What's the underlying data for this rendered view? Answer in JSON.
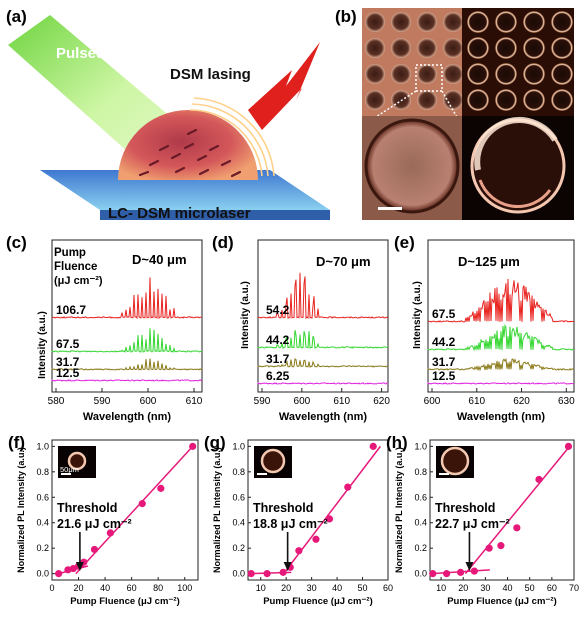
{
  "panel_a": {
    "letter": "(a)",
    "label_laser": "Pulsed laser",
    "label_lasing": "DSM lasing",
    "label_device": "LC- DSM microlaser",
    "colors": {
      "laser": "#7ddc3a",
      "glass": "#5a8fd6",
      "droplet": "#d05050",
      "bolt": "#e0201c"
    }
  },
  "panel_b": {
    "letter": "(b)"
  },
  "panel_c": {
    "letter": "(c)",
    "legend_title": "Pump",
    "legend_title2": "Fluence",
    "legend_unit": "(μJ cm⁻²)",
    "size_label": "D~40 μm",
    "ylabel": "Intensity (a.u.)",
    "xlabel": "Wavelength (nm)",
    "xticks": [
      "580",
      "590",
      "600",
      "610"
    ],
    "traces": [
      {
        "label": "106.7",
        "color": "#e8231f"
      },
      {
        "label": "67.5",
        "color": "#34d630"
      },
      {
        "label": "31.7",
        "color": "#8a7a18"
      },
      {
        "label": "12.5",
        "color": "#e020e0"
      }
    ]
  },
  "panel_d": {
    "letter": "(d)",
    "size_label": "D~70 μm",
    "ylabel": "Intensity (a.u.)",
    "xlabel": "Wavelength (nm)",
    "xticks": [
      "590",
      "600",
      "610",
      "620"
    ],
    "traces": [
      {
        "label": "54.2",
        "color": "#e8231f"
      },
      {
        "label": "44.2",
        "color": "#34d630"
      },
      {
        "label": "31.7",
        "color": "#8a7a18"
      },
      {
        "label": "6.25",
        "color": "#e020e0"
      }
    ]
  },
  "panel_e": {
    "letter": "(e)",
    "size_label": "D~125 μm",
    "ylabel": "Intensity (a.u.)",
    "xlabel": "Wavelength (nm)",
    "xticks": [
      "600",
      "610",
      "620",
      "630"
    ],
    "traces": [
      {
        "label": "67.5",
        "color": "#e8231f"
      },
      {
        "label": "44.2",
        "color": "#34d630"
      },
      {
        "label": "31.7",
        "color": "#8a7a18"
      },
      {
        "label": "12.5",
        "color": "#e020e0"
      }
    ]
  },
  "chart_data": [
    {
      "type": "scatter",
      "panel": "(f)",
      "xlabel": "Pump Fluence (μJ cm⁻²)",
      "ylabel": "Normalized PL Intensity (a.u.)",
      "xlim": [
        0,
        110
      ],
      "ylim": [
        -0.05,
        1.05
      ],
      "xticks": [
        0,
        20,
        40,
        60,
        80,
        100
      ],
      "yticks": [
        0.0,
        0.2,
        0.4,
        0.6,
        0.8,
        1.0
      ],
      "x": [
        5,
        12,
        16,
        20,
        24,
        32,
        44,
        68,
        82,
        106
      ],
      "y": [
        0.0,
        0.03,
        0.04,
        0.06,
        0.09,
        0.19,
        0.32,
        0.55,
        0.67,
        1.0
      ],
      "fit_low": [
        [
          5,
          0.0
        ],
        [
          27,
          0.06
        ]
      ],
      "fit_high": [
        [
          18,
          0.0
        ],
        [
          106,
          1.0
        ]
      ],
      "threshold_label": "Threshold",
      "threshold_value": "21.6 μJ cm⁻²",
      "scale_label": "50μm",
      "color": "#e6197a"
    },
    {
      "type": "scatter",
      "panel": "(g)",
      "xlabel": "Pump Fluence (μJ cm⁻²)",
      "ylabel": "Normalized PL Intensity (a.u.)",
      "xlim": [
        5,
        60
      ],
      "ylim": [
        -0.05,
        1.05
      ],
      "xticks": [
        10,
        20,
        30,
        40,
        50,
        60
      ],
      "yticks": [
        0.0,
        0.2,
        0.4,
        0.6,
        0.8,
        1.0
      ],
      "x": [
        6.25,
        12.5,
        18.8,
        21.6,
        25,
        31.7,
        37,
        44.2,
        54.2
      ],
      "y": [
        0.0,
        0.0,
        0.01,
        0.05,
        0.18,
        0.27,
        0.43,
        0.68,
        1.0
      ],
      "fit_low": [
        [
          6,
          0.0
        ],
        [
          22,
          0.01
        ]
      ],
      "fit_high": [
        [
          19,
          0.0
        ],
        [
          57,
          1.0
        ]
      ],
      "threshold_label": "Threshold",
      "threshold_value": "18.8 μJ cm⁻²",
      "color": "#e6197a"
    },
    {
      "type": "scatter",
      "panel": "(h)",
      "xlabel": "Pump Fluence (μJ cm⁻²)",
      "ylabel": "Normalized PL Intensity (a.u.)",
      "xlim": [
        5,
        70
      ],
      "ylim": [
        -0.05,
        1.05
      ],
      "xticks": [
        10,
        20,
        30,
        40,
        50,
        60,
        70
      ],
      "yticks": [
        0.0,
        0.2,
        0.4,
        0.6,
        0.8,
        1.0
      ],
      "x": [
        6.25,
        12.5,
        18.8,
        25,
        31.7,
        37,
        44.2,
        54.2,
        67.5
      ],
      "y": [
        0.0,
        0.0,
        0.01,
        0.02,
        0.2,
        0.22,
        0.36,
        0.74,
        1.0
      ],
      "fit_low": [
        [
          6,
          0.0
        ],
        [
          32,
          0.03
        ]
      ],
      "fit_high": [
        [
          21,
          0.0
        ],
        [
          68,
          1.0
        ]
      ],
      "threshold_label": "Threshold",
      "threshold_value": "22.7 μJ cm⁻²",
      "color": "#e6197a"
    }
  ]
}
